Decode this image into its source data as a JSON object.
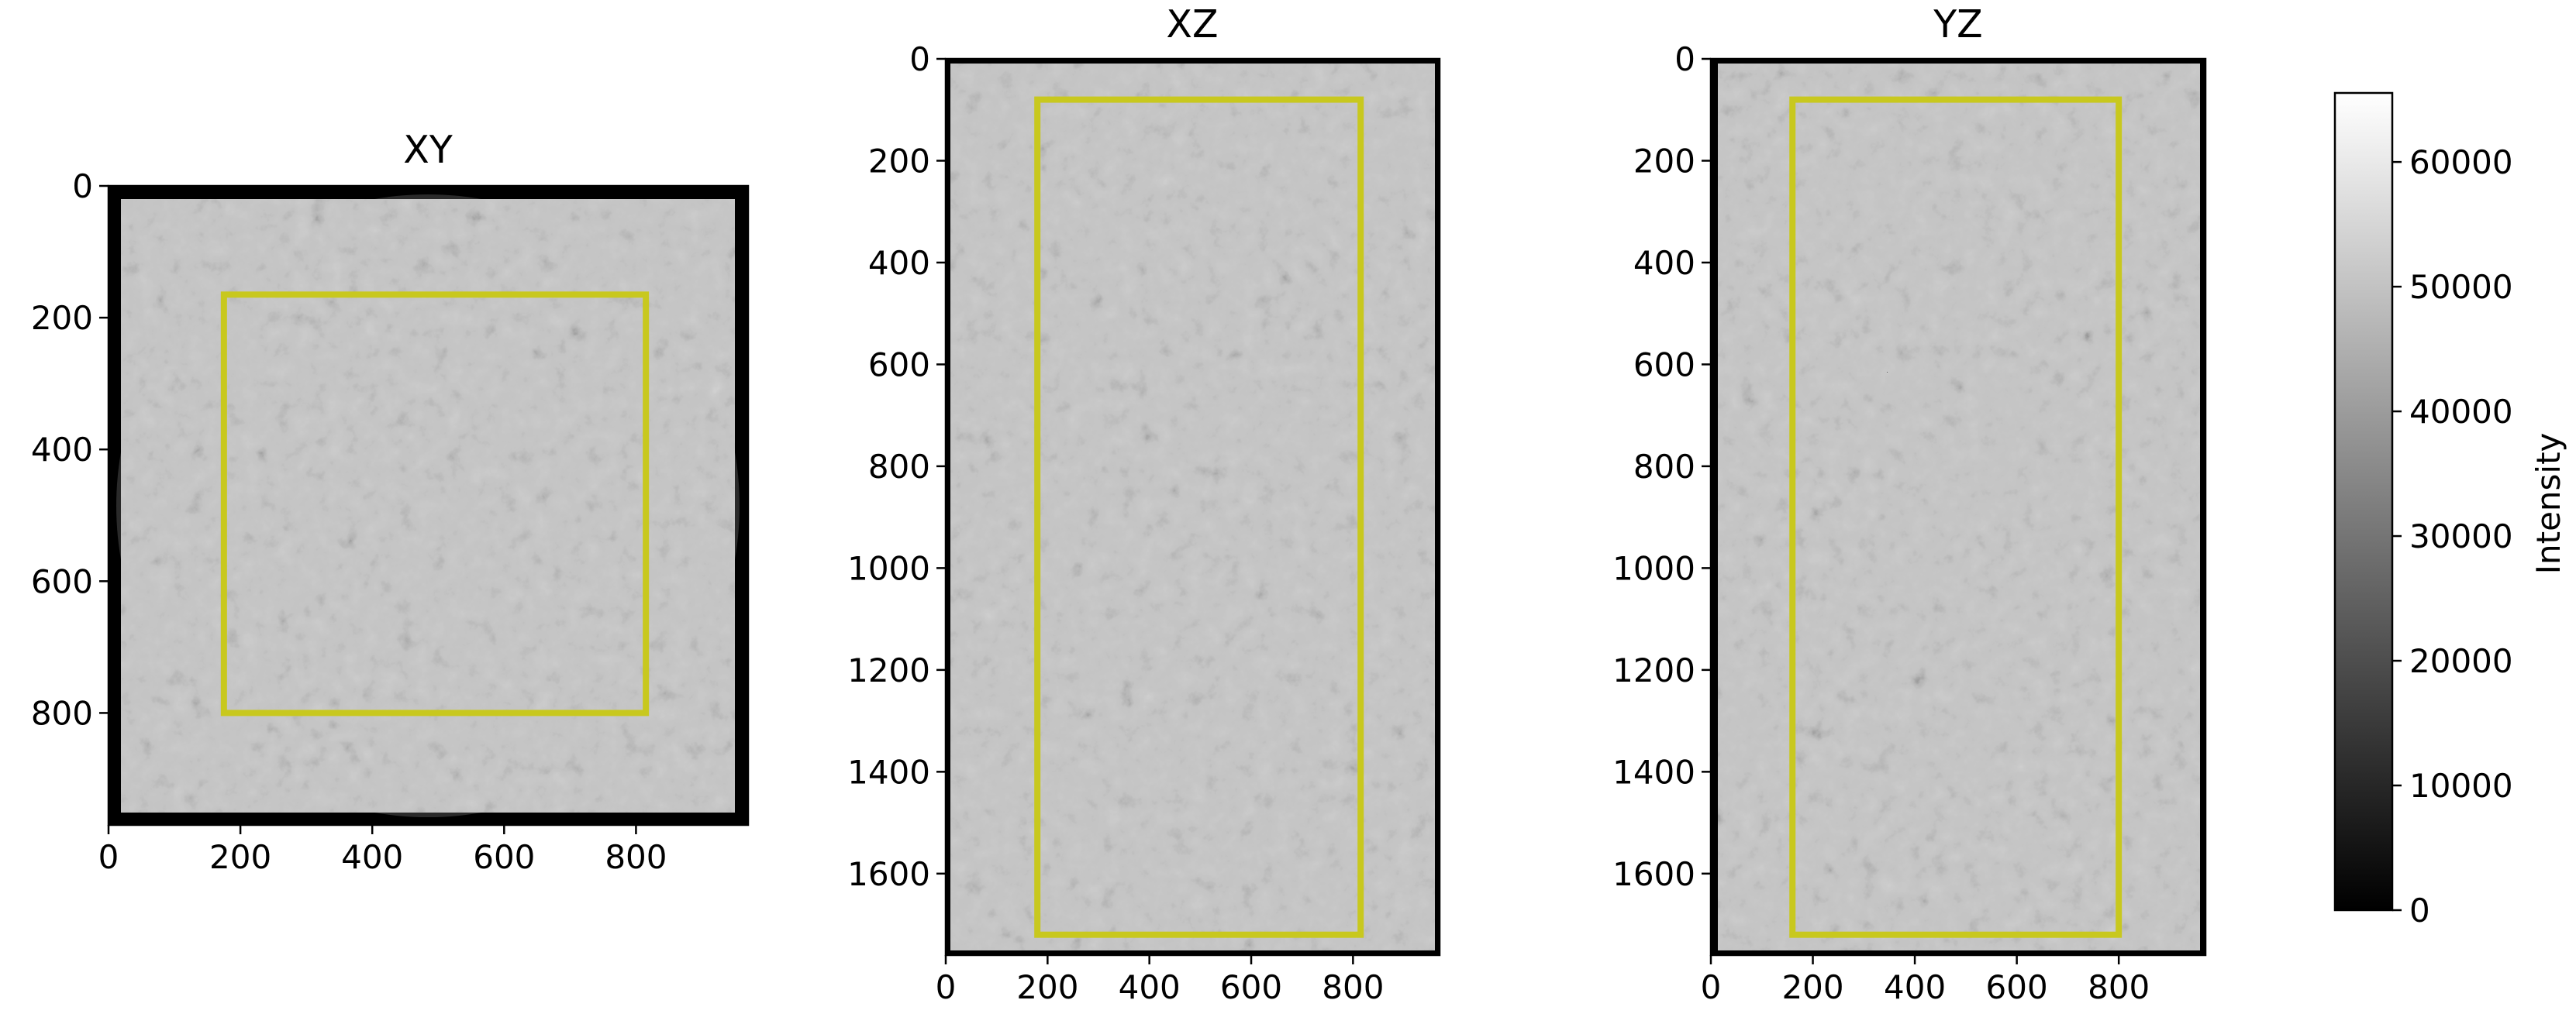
{
  "figure": {
    "colorbar": {
      "label": "Intensity",
      "min": 0,
      "max": 65535,
      "ticks": [
        0,
        10000,
        20000,
        30000,
        40000,
        50000,
        60000
      ],
      "tick_labels": [
        "0",
        "10000",
        "20000",
        "30000",
        "40000",
        "50000",
        "60000"
      ],
      "colormap": "gray"
    },
    "roi_color": "#c8c81e",
    "panels": [
      {
        "id": "xy",
        "title": "XY",
        "x_range": [
          0,
          970
        ],
        "y_range": [
          0,
          970
        ],
        "x_ticks": [
          0,
          200,
          400,
          600,
          800
        ],
        "x_tick_labels": [
          "0",
          "200",
          "400",
          "600",
          "800"
        ],
        "y_ticks": [
          0,
          200,
          400,
          600,
          800
        ],
        "y_tick_labels": [
          "0",
          "200",
          "400",
          "600",
          "800"
        ],
        "roi": {
          "x0": 175,
          "x1": 815,
          "y0": 165,
          "y1": 800
        },
        "sample_shape": "circle"
      },
      {
        "id": "xz",
        "title": "XZ",
        "x_range": [
          0,
          970
        ],
        "y_range": [
          0,
          1760
        ],
        "x_ticks": [
          0,
          200,
          400,
          600,
          800
        ],
        "x_tick_labels": [
          "0",
          "200",
          "400",
          "600",
          "800"
        ],
        "y_ticks": [
          0,
          200,
          400,
          600,
          800,
          1000,
          1200,
          1400,
          1600
        ],
        "y_tick_labels": [
          "0",
          "200",
          "400",
          "600",
          "800",
          "1000",
          "1200",
          "1400",
          "1600"
        ],
        "roi": {
          "x0": 180,
          "x1": 815,
          "y0": 80,
          "y1": 1720
        },
        "sample_shape": "rectangle"
      },
      {
        "id": "yz",
        "title": "YZ",
        "x_range": [
          0,
          970
        ],
        "y_range": [
          0,
          1760
        ],
        "x_ticks": [
          0,
          200,
          400,
          600,
          800
        ],
        "x_tick_labels": [
          "0",
          "200",
          "400",
          "600",
          "800"
        ],
        "y_ticks": [
          0,
          200,
          400,
          600,
          800,
          1000,
          1200,
          1400,
          1600
        ],
        "y_tick_labels": [
          "0",
          "200",
          "400",
          "600",
          "800",
          "1000",
          "1200",
          "1400",
          "1600"
        ],
        "roi": {
          "x0": 160,
          "x1": 800,
          "y0": 80,
          "y1": 1720
        },
        "sample_shape": "rectangle"
      }
    ]
  }
}
